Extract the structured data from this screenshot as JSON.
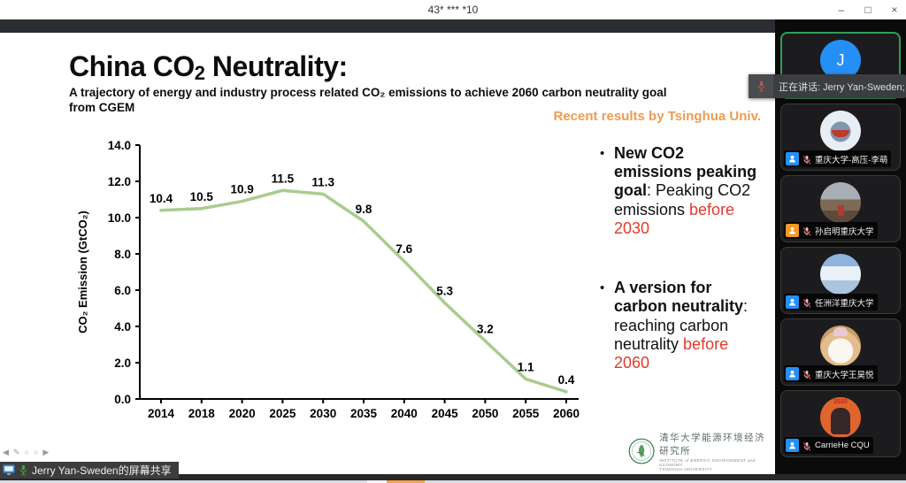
{
  "window": {
    "title": "43* *** *10",
    "controls": {
      "minimize": "–",
      "restore": "□",
      "close": "×"
    }
  },
  "slide": {
    "title": {
      "pre": "China CO",
      "sub": "2",
      "post": " Neutrality:"
    },
    "subtitle_line1": "A trajectory of energy and industry process related CO₂ emissions to achieve 2060 carbon neutrality goal",
    "subtitle_line2": "from CGEM",
    "credit": "Recent results by Tsinghua Univ.",
    "bullets": [
      {
        "marker": "•",
        "segments": [
          {
            "t": "New CO2 emissions peaking goal",
            "s": "bold"
          },
          {
            "t": ": ",
            "s": "normal"
          },
          {
            "t": "Peaking CO2 emissions ",
            "s": "normal"
          },
          {
            "t": "before 2030",
            "s": "red"
          }
        ]
      },
      {
        "marker": "•",
        "segments": [
          {
            "t": "A version for carbon neutrality",
            "s": "bold"
          },
          {
            "t": ": ",
            "s": "normal"
          },
          {
            "t": "reaching carbon neutrality ",
            "s": "normal"
          },
          {
            "t": "before 2060",
            "s": "red"
          }
        ]
      }
    ],
    "logo": {
      "line1": "清华大学能源环境经济研究所",
      "line2": "INSTITUTE of ENERGY, ENVIRONMENT and ECONOMY",
      "line3": "TSINGHUA UNIVERSITY"
    }
  },
  "chart_data": {
    "type": "line",
    "title": "",
    "categories": [
      "2014",
      "2018",
      "2020",
      "2025",
      "2030",
      "2035",
      "2040",
      "2045",
      "2050",
      "2055",
      "2060"
    ],
    "values": [
      10.4,
      10.5,
      10.9,
      11.5,
      11.3,
      9.8,
      7.6,
      5.3,
      3.2,
      1.1,
      0.4
    ],
    "xlabel": "",
    "ylabel": "CO₂ Emission (GtCO₂)",
    "ylim": [
      0,
      14
    ],
    "ytick_step": 2,
    "grid": false,
    "legend": false,
    "data_labels": true,
    "line_color": "#A9CC8F"
  },
  "meeting": {
    "tooltip": {
      "text": "正在讲话: Jerry Yan-Sweden;"
    },
    "participants": [
      {
        "name": "Jerry Yan-Sweden",
        "initial": "J",
        "avatar_style": "letter",
        "badge_color": "#2490F5",
        "speaking": true,
        "muted": false
      },
      {
        "name": "重庆大学-高压-李萌",
        "avatar_style": "shark",
        "badge_color": "#2490F5",
        "speaking": false,
        "muted": true
      },
      {
        "name": "孙启明重庆大学",
        "avatar_style": "mountain",
        "badge_color": "#F59A23",
        "speaking": false,
        "muted": true
      },
      {
        "name": "任洲洋重庆大学",
        "avatar_style": "sky",
        "badge_color": "#2490F5",
        "speaking": false,
        "muted": true
      },
      {
        "name": "重庆大学王昊悦",
        "avatar_style": "cat",
        "badge_color": "#2490F5",
        "speaking": false,
        "muted": true
      },
      {
        "name": "CarrieHe CQU",
        "avatar_text": "2020",
        "avatar_style": "mascot",
        "badge_color": "#2490F5",
        "speaking": false,
        "muted": true
      }
    ],
    "share_banner": "Jerry Yan-Sweden的屏幕共享",
    "nav_icons": [
      "◀",
      "✎",
      "○",
      "○",
      "▶"
    ]
  },
  "colors": {
    "accent_orange": "#ED9B50",
    "alert_red": "#E03A2A",
    "line_green": "#A9CC8F",
    "speaking_green": "#2E9E5B",
    "taskbar_orange": "#F0A24F"
  }
}
